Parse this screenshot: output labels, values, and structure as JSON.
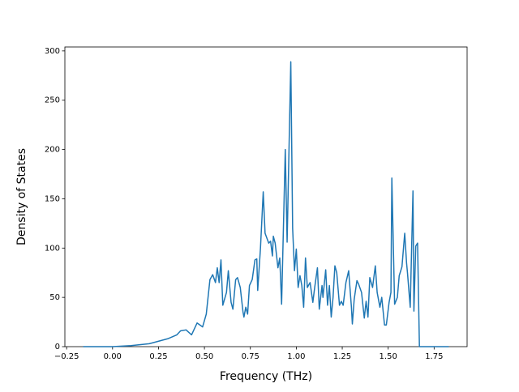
{
  "chart_data": {
    "type": "line",
    "xlabel": "Frequency (THz)",
    "ylabel": "Density of States",
    "x": [
      -0.16,
      0.0,
      0.1,
      0.2,
      0.3,
      0.35,
      0.37,
      0.4,
      0.43,
      0.46,
      0.49,
      0.51,
      0.53,
      0.545,
      0.56,
      0.57,
      0.58,
      0.59,
      0.6,
      0.62,
      0.63,
      0.645,
      0.655,
      0.67,
      0.68,
      0.695,
      0.71,
      0.715,
      0.725,
      0.735,
      0.745,
      0.76,
      0.775,
      0.785,
      0.79,
      0.805,
      0.82,
      0.83,
      0.85,
      0.86,
      0.87,
      0.875,
      0.885,
      0.9,
      0.91,
      0.92,
      0.94,
      0.95,
      0.97,
      0.98,
      0.99,
      1.0,
      1.01,
      1.02,
      1.03,
      1.04,
      1.05,
      1.06,
      1.075,
      1.09,
      1.1,
      1.115,
      1.125,
      1.14,
      1.145,
      1.16,
      1.17,
      1.18,
      1.19,
      1.2,
      1.21,
      1.22,
      1.235,
      1.245,
      1.255,
      1.27,
      1.285,
      1.3,
      1.305,
      1.315,
      1.33,
      1.34,
      1.355,
      1.37,
      1.38,
      1.39,
      1.4,
      1.415,
      1.43,
      1.44,
      1.455,
      1.465,
      1.48,
      1.49,
      1.505,
      1.515,
      1.52,
      1.535,
      1.55,
      1.56,
      1.575,
      1.59,
      1.6,
      1.605,
      1.62,
      1.635,
      1.64,
      1.65,
      1.66,
      1.67,
      1.83
    ],
    "values": [
      0,
      0,
      1,
      3,
      8,
      12,
      16,
      17,
      12,
      24,
      20,
      33,
      68,
      73,
      65,
      80,
      65,
      88,
      42,
      55,
      77,
      45,
      38,
      68,
      70,
      60,
      35,
      30,
      40,
      33,
      62,
      68,
      88,
      89,
      57,
      100,
      157,
      115,
      105,
      107,
      92,
      112,
      105,
      80,
      90,
      43,
      200,
      106,
      289,
      120,
      77,
      99,
      60,
      72,
      62,
      40,
      90,
      60,
      65,
      45,
      60,
      80,
      38,
      62,
      50,
      78,
      42,
      62,
      30,
      50,
      82,
      75,
      42,
      46,
      42,
      65,
      77,
      40,
      23,
      48,
      67,
      63,
      55,
      29,
      46,
      30,
      70,
      60,
      82,
      55,
      40,
      50,
      22,
      22,
      45,
      55,
      171,
      43,
      50,
      72,
      81,
      115,
      85,
      75,
      40,
      158,
      36,
      102,
      105,
      0,
      0
    ],
    "color": "#1f77b4",
    "xlim": [
      -0.2595,
      1.9295
    ],
    "ylim": [
      0,
      304
    ],
    "xticks": [
      {
        "value": -0.25,
        "label": "−0.25"
      },
      {
        "value": 0,
        "label": "0.00"
      },
      {
        "value": 0.25,
        "label": "0.25"
      },
      {
        "value": 0.5,
        "label": "0.50"
      },
      {
        "value": 0.75,
        "label": "0.75"
      },
      {
        "value": 1,
        "label": "1.00"
      },
      {
        "value": 1.25,
        "label": "1.25"
      },
      {
        "value": 1.5,
        "label": "1.50"
      },
      {
        "value": 1.75,
        "label": "1.75"
      }
    ],
    "yticks": [
      0,
      50,
      100,
      150,
      200,
      250,
      300
    ]
  }
}
